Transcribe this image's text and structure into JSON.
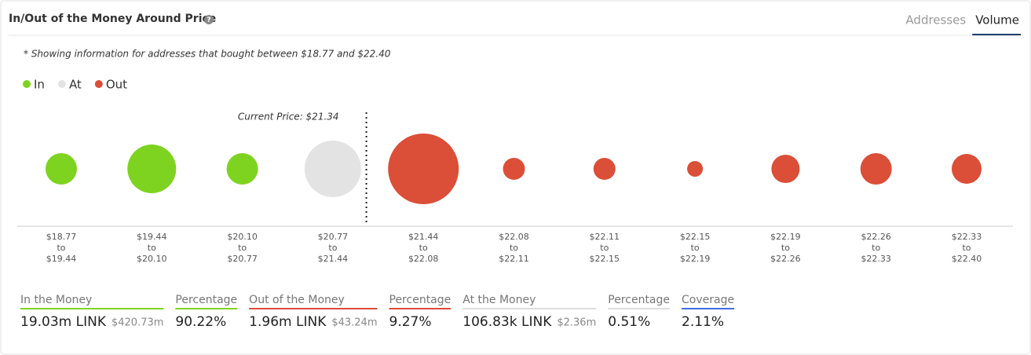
{
  "header": {
    "title": "In/Out of the Money Around Price",
    "tabs": [
      "Addresses",
      "Volume"
    ],
    "active_tab": 1
  },
  "chart_data": {
    "type": "bubble",
    "note": "* Showing information for addresses that bought between $18.77 and $22.40",
    "legend": [
      {
        "name": "In",
        "color": "#7ed321"
      },
      {
        "name": "At",
        "color": "#e3e3e3"
      },
      {
        "name": "Out",
        "color": "#db4e37"
      }
    ],
    "current_price_label": "Current Price: $21.34",
    "range_joiner": "to",
    "categories": [
      {
        "from": "$18.77",
        "to": "$19.44"
      },
      {
        "from": "$19.44",
        "to": "$20.10"
      },
      {
        "from": "$20.10",
        "to": "$20.77"
      },
      {
        "from": "$20.77",
        "to": "$21.44"
      },
      {
        "from": "$21.44",
        "to": "$22.08"
      },
      {
        "from": "$22.08",
        "to": "$22.11"
      },
      {
        "from": "$22.11",
        "to": "$22.15"
      },
      {
        "from": "$22.15",
        "to": "$22.19"
      },
      {
        "from": "$22.19",
        "to": "$22.26"
      },
      {
        "from": "$22.26",
        "to": "$22.33"
      },
      {
        "from": "$22.33",
        "to": "$22.40"
      }
    ],
    "values": [
      400,
      961,
      400,
      1296,
      2025,
      196,
      196,
      100,
      324,
      400,
      361
    ],
    "colors": [
      "#7ed321",
      "#7ed321",
      "#7ed321",
      "#e3e3e3",
      "#db4e37",
      "#db4e37",
      "#db4e37",
      "#db4e37",
      "#db4e37",
      "#db4e37",
      "#db4e37"
    ]
  },
  "summary": [
    {
      "label": "In the Money",
      "value": "19.03m LINK",
      "sub": "$420.73m",
      "color": "#7ed321"
    },
    {
      "label": "Percentage",
      "value": "90.22%",
      "color": "#7ed321"
    },
    {
      "label": "Out of the Money",
      "value": "1.96m LINK",
      "sub": "$43.24m",
      "color": "#db4e37"
    },
    {
      "label": "Percentage",
      "value": "9.27%",
      "color": "#db4e37"
    },
    {
      "label": "At the Money",
      "value": "106.83k LINK",
      "sub": "$2.36m",
      "color": "#dddddd"
    },
    {
      "label": "Percentage",
      "value": "0.51%",
      "color": "#dddddd"
    },
    {
      "label": "Coverage",
      "value": "2.11%",
      "color": "#3c6fe6"
    }
  ]
}
